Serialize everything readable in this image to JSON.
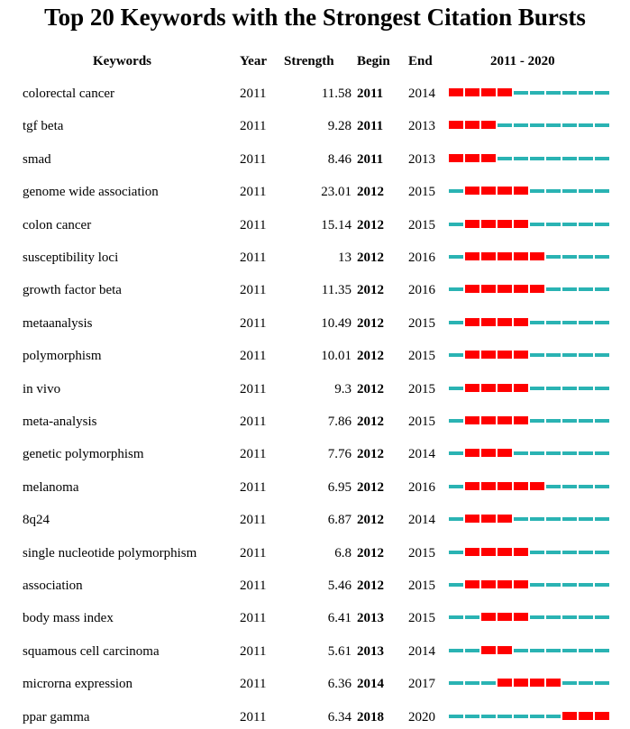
{
  "title": "Top 20 Keywords with the Strongest Citation Bursts",
  "colors": {
    "burst": "#ff0000",
    "normal": "#2ab3b3"
  },
  "chart_data": {
    "type": "table",
    "title": "Top 20 Keywords with the Strongest Citation Bursts",
    "columns": [
      "Keywords",
      "Year",
      "Strength",
      "Begin",
      "End",
      "2011 - 2020"
    ],
    "range": [
      2011,
      2020
    ],
    "rows": [
      {
        "keyword": "colorectal cancer",
        "year": "2011",
        "strength": "11.58",
        "begin": "2011",
        "end": "2014"
      },
      {
        "keyword": "tgf beta",
        "year": "2011",
        "strength": "9.28",
        "begin": "2011",
        "end": "2013"
      },
      {
        "keyword": "smad",
        "year": "2011",
        "strength": "8.46",
        "begin": "2011",
        "end": "2013"
      },
      {
        "keyword": "genome wide association",
        "year": "2011",
        "strength": "23.01",
        "begin": "2012",
        "end": "2015"
      },
      {
        "keyword": "colon cancer",
        "year": "2011",
        "strength": "15.14",
        "begin": "2012",
        "end": "2015"
      },
      {
        "keyword": "susceptibility loci",
        "year": "2011",
        "strength": "13",
        "begin": "2012",
        "end": "2016"
      },
      {
        "keyword": "growth factor beta",
        "year": "2011",
        "strength": "11.35",
        "begin": "2012",
        "end": "2016"
      },
      {
        "keyword": "metaanalysis",
        "year": "2011",
        "strength": "10.49",
        "begin": "2012",
        "end": "2015"
      },
      {
        "keyword": "polymorphism",
        "year": "2011",
        "strength": "10.01",
        "begin": "2012",
        "end": "2015"
      },
      {
        "keyword": "in vivo",
        "year": "2011",
        "strength": "9.3",
        "begin": "2012",
        "end": "2015"
      },
      {
        "keyword": "meta-analysis",
        "year": "2011",
        "strength": "7.86",
        "begin": "2012",
        "end": "2015"
      },
      {
        "keyword": "genetic polymorphism",
        "year": "2011",
        "strength": "7.76",
        "begin": "2012",
        "end": "2014"
      },
      {
        "keyword": "melanoma",
        "year": "2011",
        "strength": "6.95",
        "begin": "2012",
        "end": "2016"
      },
      {
        "keyword": "8q24",
        "year": "2011",
        "strength": "6.87",
        "begin": "2012",
        "end": "2014"
      },
      {
        "keyword": "single nucleotide polymorphism",
        "year": "2011",
        "strength": "6.8",
        "begin": "2012",
        "end": "2015"
      },
      {
        "keyword": "association",
        "year": "2011",
        "strength": "5.46",
        "begin": "2012",
        "end": "2015"
      },
      {
        "keyword": "body mass index",
        "year": "2011",
        "strength": "6.41",
        "begin": "2013",
        "end": "2015"
      },
      {
        "keyword": "squamous cell carcinoma",
        "year": "2011",
        "strength": "5.61",
        "begin": "2013",
        "end": "2014"
      },
      {
        "keyword": "microrna expression",
        "year": "2011",
        "strength": "6.36",
        "begin": "2014",
        "end": "2017"
      },
      {
        "keyword": "ppar gamma",
        "year": "2011",
        "strength": "6.34",
        "begin": "2018",
        "end": "2020"
      }
    ]
  }
}
